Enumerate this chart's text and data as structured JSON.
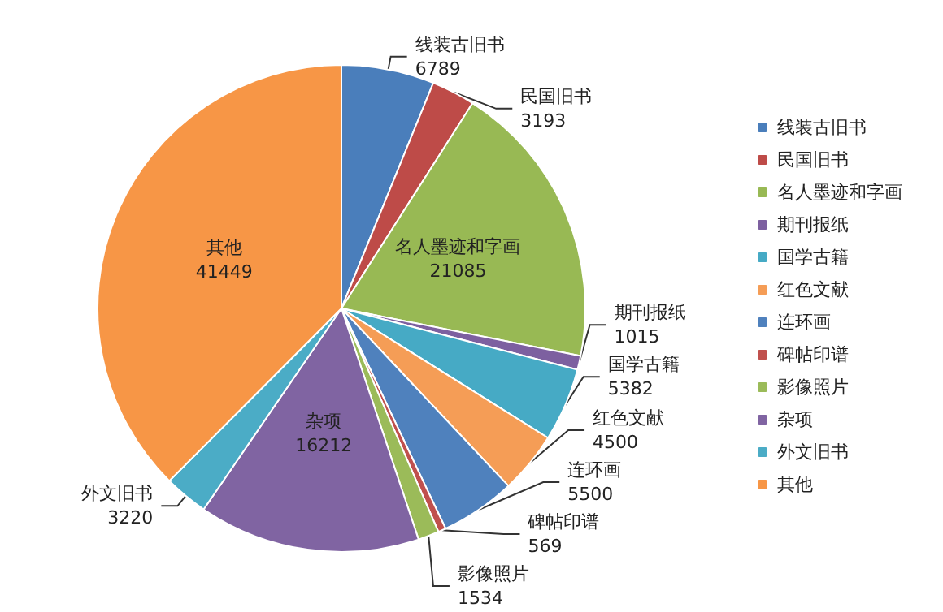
{
  "chart_data": {
    "type": "pie",
    "categories": [
      "线装古旧书",
      "民国旧书",
      "名人墨迹和字画",
      "期刊报纸",
      "国学古籍",
      "红色文献",
      "连环画",
      "碑帖印谱",
      "影像照片",
      "杂项",
      "外文旧书",
      "其他"
    ],
    "values": [
      6789,
      3193,
      21085,
      1015,
      5382,
      4500,
      5500,
      569,
      1534,
      16212,
      3220,
      41449
    ],
    "colors": [
      "#4a7ebb",
      "#be4b48",
      "#98b954",
      "#7d60a0",
      "#46aac5",
      "#f59d56",
      "#4f81bd",
      "#c0504d",
      "#9bbb59",
      "#8064a2",
      "#4bacc6",
      "#f79646"
    ],
    "data_labels": true,
    "legend": "right"
  }
}
